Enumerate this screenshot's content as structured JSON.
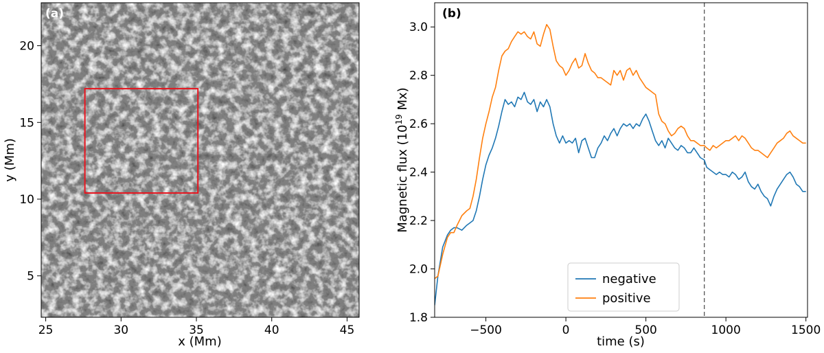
{
  "chart_data": [
    {
      "type": "heatmap",
      "panel_label": "(a)",
      "xlabel": "x (Mm)",
      "ylabel": "y (Mm)",
      "xlim": [
        24.7,
        45.8
      ],
      "ylim": [
        2.3,
        22.8
      ],
      "xticks": [
        "25",
        "30",
        "35",
        "40",
        "45"
      ],
      "xtick_values": [
        25,
        30,
        35,
        40,
        45
      ],
      "yticks": [
        "5",
        "10",
        "15",
        "20"
      ],
      "ytick_values": [
        5,
        10,
        15,
        20
      ],
      "roi_box": {
        "x0": 27.6,
        "x1": 35.1,
        "y0": 10.4,
        "y1": 17.2,
        "color": "#e8141e"
      },
      "colormap": "gray"
    },
    {
      "type": "line",
      "panel_label": "(b)",
      "xlabel": "time (s)",
      "ylabel_prefix": "Magnetic flux (10",
      "ylabel_exp": "19",
      "ylabel_suffix": " Mx)",
      "xlim": [
        -820,
        1510
      ],
      "ylim": [
        1.8,
        3.1
      ],
      "xticks": [
        "−500",
        "0",
        "500",
        "1000",
        "1500"
      ],
      "xtick_values": [
        -500,
        0,
        500,
        1000,
        1500
      ],
      "yticks": [
        "1.8",
        "2.0",
        "2.2",
        "2.4",
        "2.6",
        "2.8",
        "3.0"
      ],
      "ytick_values": [
        1.8,
        2.0,
        2.2,
        2.4,
        2.6,
        2.8,
        3.0
      ],
      "vline_x": 865,
      "legend_position": "lower-center",
      "series": [
        {
          "name": "negative",
          "color": "#1f77b4",
          "x": [
            -820,
            -800,
            -770,
            -740,
            -720,
            -700,
            -680,
            -650,
            -620,
            -600,
            -580,
            -560,
            -540,
            -520,
            -500,
            -480,
            -460,
            -440,
            -420,
            -400,
            -380,
            -360,
            -340,
            -320,
            -300,
            -280,
            -260,
            -240,
            -220,
            -200,
            -180,
            -160,
            -140,
            -120,
            -100,
            -80,
            -60,
            -40,
            -20,
            0,
            20,
            40,
            60,
            80,
            100,
            120,
            140,
            160,
            180,
            200,
            220,
            240,
            260,
            280,
            300,
            320,
            340,
            360,
            380,
            400,
            420,
            440,
            460,
            480,
            500,
            520,
            540,
            560,
            580,
            600,
            620,
            640,
            660,
            680,
            700,
            720,
            740,
            760,
            780,
            800,
            820,
            840,
            865,
            880,
            900,
            920,
            940,
            960,
            980,
            1000,
            1020,
            1040,
            1060,
            1080,
            1100,
            1120,
            1140,
            1160,
            1180,
            1200,
            1220,
            1240,
            1260,
            1280,
            1300,
            1320,
            1340,
            1360,
            1380,
            1400,
            1420,
            1440,
            1460,
            1480,
            1500
          ],
          "y": [
            1.85,
            1.97,
            2.09,
            2.14,
            2.16,
            2.17,
            2.17,
            2.16,
            2.18,
            2.19,
            2.2,
            2.24,
            2.3,
            2.37,
            2.43,
            2.47,
            2.5,
            2.54,
            2.59,
            2.65,
            2.7,
            2.68,
            2.69,
            2.67,
            2.71,
            2.7,
            2.73,
            2.69,
            2.68,
            2.7,
            2.65,
            2.69,
            2.67,
            2.7,
            2.67,
            2.6,
            2.55,
            2.52,
            2.55,
            2.52,
            2.53,
            2.52,
            2.54,
            2.48,
            2.53,
            2.54,
            2.5,
            2.46,
            2.46,
            2.5,
            2.52,
            2.55,
            2.53,
            2.56,
            2.58,
            2.55,
            2.58,
            2.6,
            2.59,
            2.6,
            2.58,
            2.6,
            2.59,
            2.62,
            2.64,
            2.61,
            2.57,
            2.53,
            2.51,
            2.53,
            2.5,
            2.54,
            2.52,
            2.5,
            2.49,
            2.51,
            2.5,
            2.48,
            2.48,
            2.5,
            2.48,
            2.46,
            2.45,
            2.42,
            2.41,
            2.4,
            2.39,
            2.4,
            2.39,
            2.39,
            2.38,
            2.4,
            2.39,
            2.37,
            2.38,
            2.4,
            2.36,
            2.34,
            2.33,
            2.35,
            2.32,
            2.3,
            2.29,
            2.26,
            2.3,
            2.33,
            2.35,
            2.37,
            2.39,
            2.4,
            2.38,
            2.35,
            2.34,
            2.32,
            2.32
          ]
        },
        {
          "name": "positive",
          "color": "#ff7f0e",
          "x": [
            -820,
            -800,
            -770,
            -740,
            -720,
            -700,
            -680,
            -650,
            -620,
            -600,
            -580,
            -560,
            -540,
            -520,
            -500,
            -480,
            -460,
            -440,
            -420,
            -400,
            -380,
            -360,
            -340,
            -320,
            -300,
            -280,
            -260,
            -240,
            -220,
            -200,
            -180,
            -160,
            -140,
            -120,
            -100,
            -80,
            -60,
            -40,
            -20,
            0,
            20,
            40,
            60,
            80,
            100,
            120,
            140,
            160,
            180,
            200,
            220,
            240,
            260,
            280,
            300,
            320,
            340,
            360,
            380,
            400,
            420,
            440,
            460,
            480,
            500,
            520,
            540,
            560,
            580,
            600,
            620,
            640,
            660,
            680,
            700,
            720,
            740,
            760,
            780,
            800,
            820,
            840,
            865,
            880,
            900,
            920,
            940,
            960,
            980,
            1000,
            1020,
            1040,
            1060,
            1080,
            1100,
            1120,
            1140,
            1160,
            1180,
            1200,
            1220,
            1240,
            1260,
            1280,
            1300,
            1320,
            1340,
            1360,
            1380,
            1400,
            1420,
            1440,
            1460,
            1480,
            1500
          ],
          "y": [
            1.96,
            1.97,
            2.06,
            2.13,
            2.15,
            2.15,
            2.18,
            2.22,
            2.24,
            2.25,
            2.3,
            2.37,
            2.46,
            2.54,
            2.6,
            2.65,
            2.71,
            2.75,
            2.82,
            2.88,
            2.9,
            2.91,
            2.94,
            2.96,
            2.98,
            2.97,
            2.98,
            2.96,
            2.95,
            2.98,
            2.93,
            2.92,
            2.97,
            3.01,
            2.99,
            2.92,
            2.86,
            2.84,
            2.83,
            2.8,
            2.82,
            2.85,
            2.87,
            2.83,
            2.84,
            2.89,
            2.85,
            2.82,
            2.81,
            2.79,
            2.79,
            2.78,
            2.77,
            2.76,
            2.82,
            2.8,
            2.82,
            2.78,
            2.82,
            2.83,
            2.8,
            2.82,
            2.79,
            2.77,
            2.75,
            2.74,
            2.73,
            2.72,
            2.64,
            2.61,
            2.6,
            2.57,
            2.55,
            2.56,
            2.58,
            2.59,
            2.58,
            2.55,
            2.53,
            2.53,
            2.52,
            2.51,
            2.51,
            2.5,
            2.49,
            2.51,
            2.5,
            2.51,
            2.52,
            2.53,
            2.53,
            2.54,
            2.55,
            2.53,
            2.55,
            2.54,
            2.52,
            2.5,
            2.49,
            2.49,
            2.48,
            2.47,
            2.46,
            2.48,
            2.5,
            2.52,
            2.53,
            2.54,
            2.56,
            2.57,
            2.55,
            2.54,
            2.53,
            2.52,
            2.52
          ]
        }
      ]
    }
  ]
}
